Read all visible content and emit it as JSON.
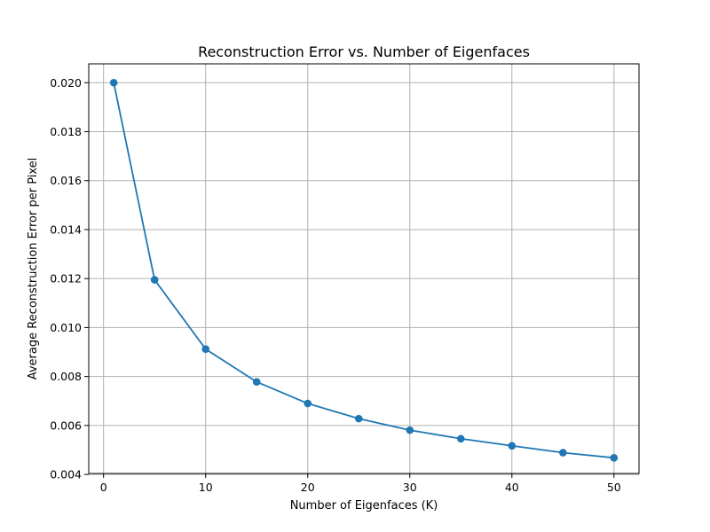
{
  "chart_data": {
    "type": "line",
    "title": "Reconstruction Error vs. Number of Eigenfaces",
    "xlabel": "Number of Eigenfaces (K)",
    "ylabel": "Average Reconstruction Error per Pixel",
    "xlim": [
      -1.45,
      52.45
    ],
    "ylim": [
      0.00404,
      0.02077
    ],
    "xticks": [
      0,
      10,
      20,
      30,
      40,
      50
    ],
    "xtick_labels": [
      "0",
      "10",
      "20",
      "30",
      "40",
      "50"
    ],
    "yticks": [
      0.004,
      0.006,
      0.008,
      0.01,
      0.012,
      0.014,
      0.016,
      0.018,
      0.02
    ],
    "ytick_labels": [
      "0.004",
      "0.006",
      "0.008",
      "0.010",
      "0.012",
      "0.014",
      "0.016",
      "0.018",
      "0.020"
    ],
    "grid": true,
    "color": "#1f77b4",
    "x": [
      1,
      5,
      10,
      15,
      20,
      25,
      30,
      35,
      40,
      45,
      50
    ],
    "series": [
      {
        "values": [
          0.02,
          0.01195,
          0.00912,
          0.00778,
          0.0069,
          0.00628,
          0.00581,
          0.00546,
          0.00517,
          0.00489,
          0.00468
        ]
      }
    ]
  }
}
